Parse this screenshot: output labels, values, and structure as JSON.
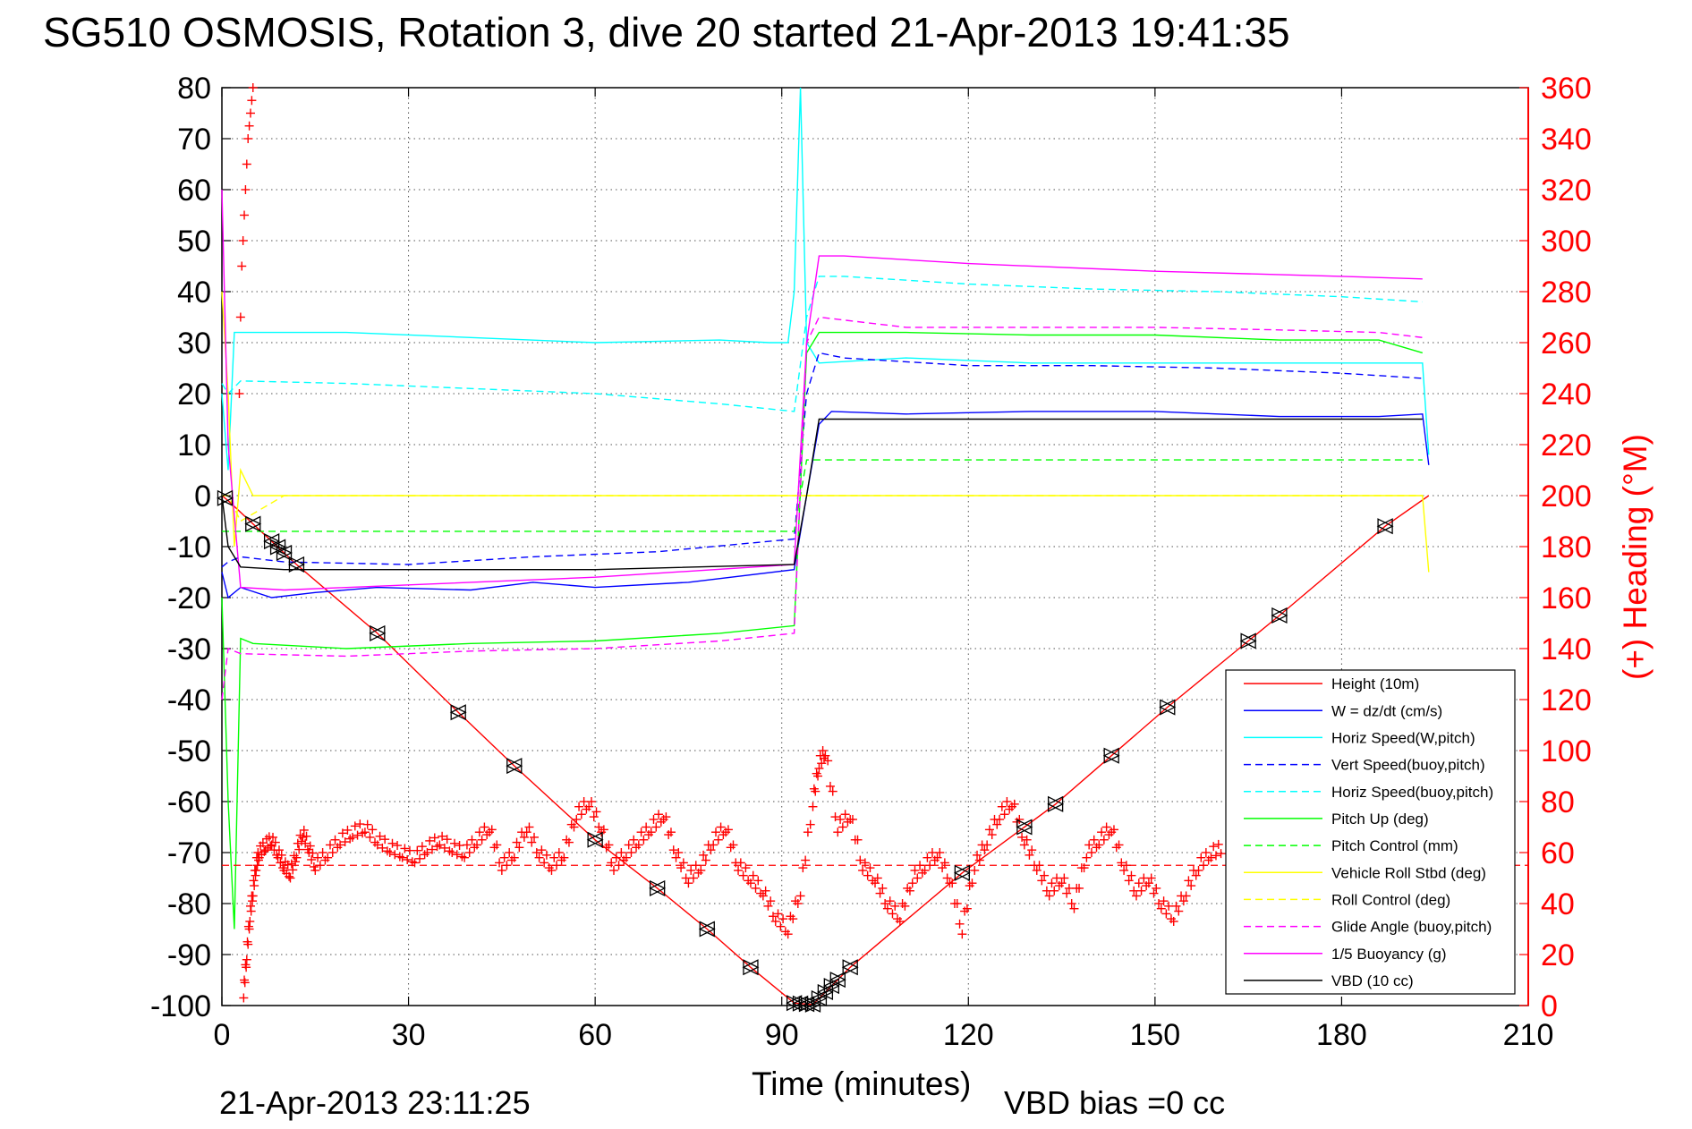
{
  "chart_data": {
    "type": "line",
    "title": "SG510 OSMOSIS, Rotation 3, dive 20 started 21-Apr-2013 19:41:35",
    "xlabel": "Time (minutes)",
    "ylabel_right": "(+) Heading (°M)",
    "footer_date": "21-Apr-2013 23:11:25",
    "footer_bias": "VBD bias =0 cc",
    "xlim": [
      0,
      210
    ],
    "ylim": [
      -100,
      80
    ],
    "ylim_right": [
      0,
      360
    ],
    "x_ticks": [
      "0",
      "30",
      "60",
      "90",
      "120",
      "150",
      "180",
      "210"
    ],
    "x_tick_values": [
      0,
      30,
      60,
      90,
      120,
      150,
      180,
      210
    ],
    "y_ticks": [
      "80",
      "70",
      "60",
      "50",
      "40",
      "30",
      "20",
      "10",
      "0",
      "-10",
      "-20",
      "-30",
      "-40",
      "-50",
      "-60",
      "-70",
      "-80",
      "-90",
      "-100"
    ],
    "y_tick_values": [
      80,
      70,
      60,
      50,
      40,
      30,
      20,
      10,
      0,
      -10,
      -20,
      -30,
      -40,
      -50,
      -60,
      -70,
      -80,
      -90,
      -100
    ],
    "y_ticks_right": [
      "360",
      "340",
      "320",
      "300",
      "280",
      "260",
      "240",
      "220",
      "200",
      "180",
      "160",
      "140",
      "120",
      "100",
      "80",
      "60",
      "40",
      "20",
      "0"
    ],
    "y_tick_values_right": [
      360,
      340,
      320,
      300,
      280,
      260,
      240,
      220,
      200,
      180,
      160,
      140,
      120,
      100,
      80,
      60,
      40,
      20,
      0
    ],
    "grid": true,
    "legend_position": "bottom-right",
    "series": [
      {
        "name": "Height (10m)",
        "color": "#ff0000",
        "dash": "solid",
        "x": [
          0,
          1,
          12,
          25,
          38,
          47,
          60,
          70,
          78,
          85,
          92,
          95,
          101,
          119,
          129,
          134,
          143,
          152,
          165,
          170,
          187,
          194
        ],
        "y": [
          0,
          -1,
          -13.5,
          -27,
          -42.5,
          -53,
          -67.5,
          -77,
          -85,
          -92.5,
          -99.5,
          -99.8,
          -92.5,
          -74,
          -65,
          -60.5,
          -51,
          -41.5,
          -28.5,
          -23.5,
          -6,
          0
        ]
      },
      {
        "name": "W = dz/dt (cm/s)",
        "color": "#0000ff",
        "dash": "solid",
        "x": [
          0,
          1,
          3,
          8,
          15,
          25,
          40,
          50,
          60,
          75,
          92,
          94,
          96,
          98,
          110,
          130,
          150,
          170,
          186,
          193,
          194
        ],
        "y": [
          -15,
          -20,
          -18,
          -20,
          -19,
          -18,
          -18.5,
          -17,
          -18,
          -17,
          -14.5,
          0,
          14,
          16.5,
          16,
          16.5,
          16.5,
          15.5,
          15.5,
          16,
          6
        ]
      },
      {
        "name": "Horiz Speed(W,pitch)",
        "color": "#00ffff",
        "dash": "solid",
        "x": [
          0,
          1,
          2,
          5,
          20,
          40,
          60,
          80,
          88,
          91,
          92,
          93,
          94,
          95,
          96,
          110,
          130,
          150,
          170,
          186,
          193,
          194
        ],
        "y": [
          20,
          5,
          32,
          32,
          32,
          31,
          30,
          30.5,
          30,
          30,
          40,
          80,
          30,
          28,
          26,
          27,
          26,
          26,
          26,
          26,
          26,
          8
        ]
      },
      {
        "name": "Vert Speed(buoy,pitch)",
        "color": "#0000ff",
        "dash": "dashed",
        "x": [
          0,
          1,
          3,
          10,
          30,
          50,
          70,
          92,
          94,
          96,
          100,
          120,
          140,
          160,
          180,
          193
        ],
        "y": [
          -14,
          -13,
          -12,
          -13,
          -13.5,
          -12,
          -11,
          -8.5,
          20,
          28,
          27,
          25.5,
          25.5,
          25,
          24,
          23
        ]
      },
      {
        "name": "Horiz Speed(buoy,pitch)",
        "color": "#00ffff",
        "dash": "dashed",
        "x": [
          0,
          1,
          3,
          20,
          40,
          60,
          80,
          92,
          94,
          96,
          100,
          120,
          140,
          160,
          180,
          193
        ],
        "y": [
          22,
          20,
          22.5,
          22,
          21,
          20,
          18,
          16.5,
          35,
          43,
          43,
          41.5,
          40.5,
          40,
          39,
          38
        ]
      },
      {
        "name": "Pitch Up (deg)",
        "color": "#00ff00",
        "dash": "solid",
        "x": [
          0,
          1,
          2,
          3,
          5,
          20,
          40,
          60,
          80,
          92,
          94,
          96,
          110,
          130,
          150,
          170,
          186,
          193
        ],
        "y": [
          -20,
          -60,
          -85,
          -28,
          -29,
          -30,
          -29,
          -28.5,
          -27,
          -25.5,
          28,
          32,
          32,
          31.5,
          31.5,
          30.5,
          30.5,
          28
        ]
      },
      {
        "name": "Pitch Control (mm)",
        "color": "#00ff00",
        "dash": "dashed",
        "x": [
          0,
          1,
          3,
          10,
          50,
          92,
          94,
          96,
          193
        ],
        "y": [
          -7,
          -7,
          -7,
          -7,
          -7,
          -7,
          7,
          7,
          7
        ]
      },
      {
        "name": "Vehicle Roll Stbd (deg)",
        "color": "#ffff00",
        "dash": "solid",
        "x": [
          0,
          1,
          2,
          3,
          5,
          8,
          10,
          25,
          40,
          55,
          70,
          85,
          92,
          96,
          110,
          130,
          150,
          170,
          186,
          193,
          194
        ],
        "y": [
          40,
          20,
          -10,
          5,
          0,
          0,
          0,
          0,
          0,
          0,
          0,
          0,
          0,
          0,
          0,
          0,
          0,
          0,
          0,
          0,
          -15
        ]
      },
      {
        "name": "Roll Control (deg)",
        "color": "#ffff00",
        "dash": "dashed",
        "x": [
          0,
          1,
          3,
          10,
          50,
          92,
          94,
          96,
          193
        ],
        "y": [
          0,
          0,
          -5,
          0,
          0,
          0,
          0,
          0,
          0
        ]
      },
      {
        "name": "Glide Angle (buoy,pitch)",
        "color": "#ff00ff",
        "dash": "dashed",
        "x": [
          0,
          1,
          3,
          20,
          40,
          60,
          80,
          92,
          94,
          96,
          110,
          130,
          150,
          170,
          186,
          193
        ],
        "y": [
          -40,
          -30,
          -31,
          -31.5,
          -30.5,
          -30,
          -28.5,
          -27,
          30,
          35,
          33,
          33,
          33,
          32.5,
          32,
          31
        ]
      },
      {
        "name": "1/5 Buoyancy (g)",
        "color": "#ff00ff",
        "dash": "solid",
        "x": [
          0,
          1,
          3,
          10,
          30,
          60,
          92,
          94,
          96,
          100,
          120,
          150,
          180,
          193
        ],
        "y": [
          60,
          10,
          -18,
          -18.5,
          -17.5,
          -16,
          -13.5,
          30,
          47,
          47,
          45.5,
          44,
          43,
          42.5
        ]
      },
      {
        "name": "VBD (10 cc)",
        "color": "#000000",
        "dash": "solid",
        "x": [
          0,
          1,
          3,
          10,
          60,
          92,
          94,
          96,
          120,
          193
        ],
        "y": [
          0,
          -10,
          -14,
          -14.5,
          -14.5,
          -13.5,
          0,
          15,
          15,
          15
        ]
      }
    ],
    "heading_series": {
      "color": "#ff0000",
      "marker": "+",
      "axis": "right",
      "mean_heading_deg": 55,
      "x": [
        3.5,
        4,
        4.5,
        5,
        5.5,
        6,
        7,
        8,
        9,
        10,
        11,
        12,
        13,
        14,
        15,
        17,
        19,
        21,
        23,
        25,
        27,
        29,
        31,
        33,
        35,
        37,
        39,
        41,
        43,
        45,
        47,
        49,
        51,
        53,
        55,
        57,
        59,
        61,
        63,
        65,
        67,
        69,
        71,
        73,
        75,
        77,
        79,
        81,
        83,
        85,
        87,
        89,
        91,
        93,
        95,
        96,
        97,
        99,
        101,
        103,
        105,
        107,
        109,
        111,
        113,
        115,
        117,
        119,
        121,
        123,
        125,
        127,
        129,
        131,
        133,
        135,
        137,
        139,
        141,
        143,
        145,
        147,
        149,
        151,
        153,
        155,
        157,
        159,
        161
      ],
      "y": [
        5,
        20,
        35,
        45,
        55,
        60,
        63,
        65,
        60,
        55,
        52,
        60,
        68,
        62,
        55,
        60,
        65,
        68,
        70,
        65,
        62,
        60,
        58,
        62,
        65,
        62,
        60,
        65,
        70,
        55,
        60,
        70,
        60,
        55,
        60,
        75,
        80,
        70,
        55,
        60,
        65,
        70,
        75,
        60,
        50,
        55,
        65,
        70,
        55,
        50,
        45,
        35,
        30,
        45,
        80,
        95,
        100,
        70,
        75,
        55,
        50,
        40,
        35,
        50,
        55,
        60,
        50,
        30,
        55,
        65,
        75,
        80,
        65,
        55,
        45,
        50,
        40,
        60,
        65,
        70,
        55,
        45,
        50,
        40,
        35,
        45,
        55,
        60,
        62
      ]
    },
    "heading_early_spike": {
      "x": [
        2.8,
        3.0,
        3.2,
        3.4,
        3.6,
        3.8,
        4.0,
        4.2,
        4.4,
        4.6,
        4.8,
        5.0
      ],
      "y": [
        240,
        270,
        290,
        300,
        310,
        320,
        330,
        340,
        345,
        350,
        355,
        360
      ]
    },
    "triangle_markers": {
      "color": "#000000",
      "x": [
        0.5,
        5,
        8,
        9,
        10,
        12,
        25,
        38,
        47,
        60,
        70,
        78,
        85,
        92,
        93,
        94,
        95,
        96,
        97,
        98,
        99,
        101,
        119,
        129,
        134,
        143,
        152,
        165,
        170,
        187
      ]
    }
  }
}
